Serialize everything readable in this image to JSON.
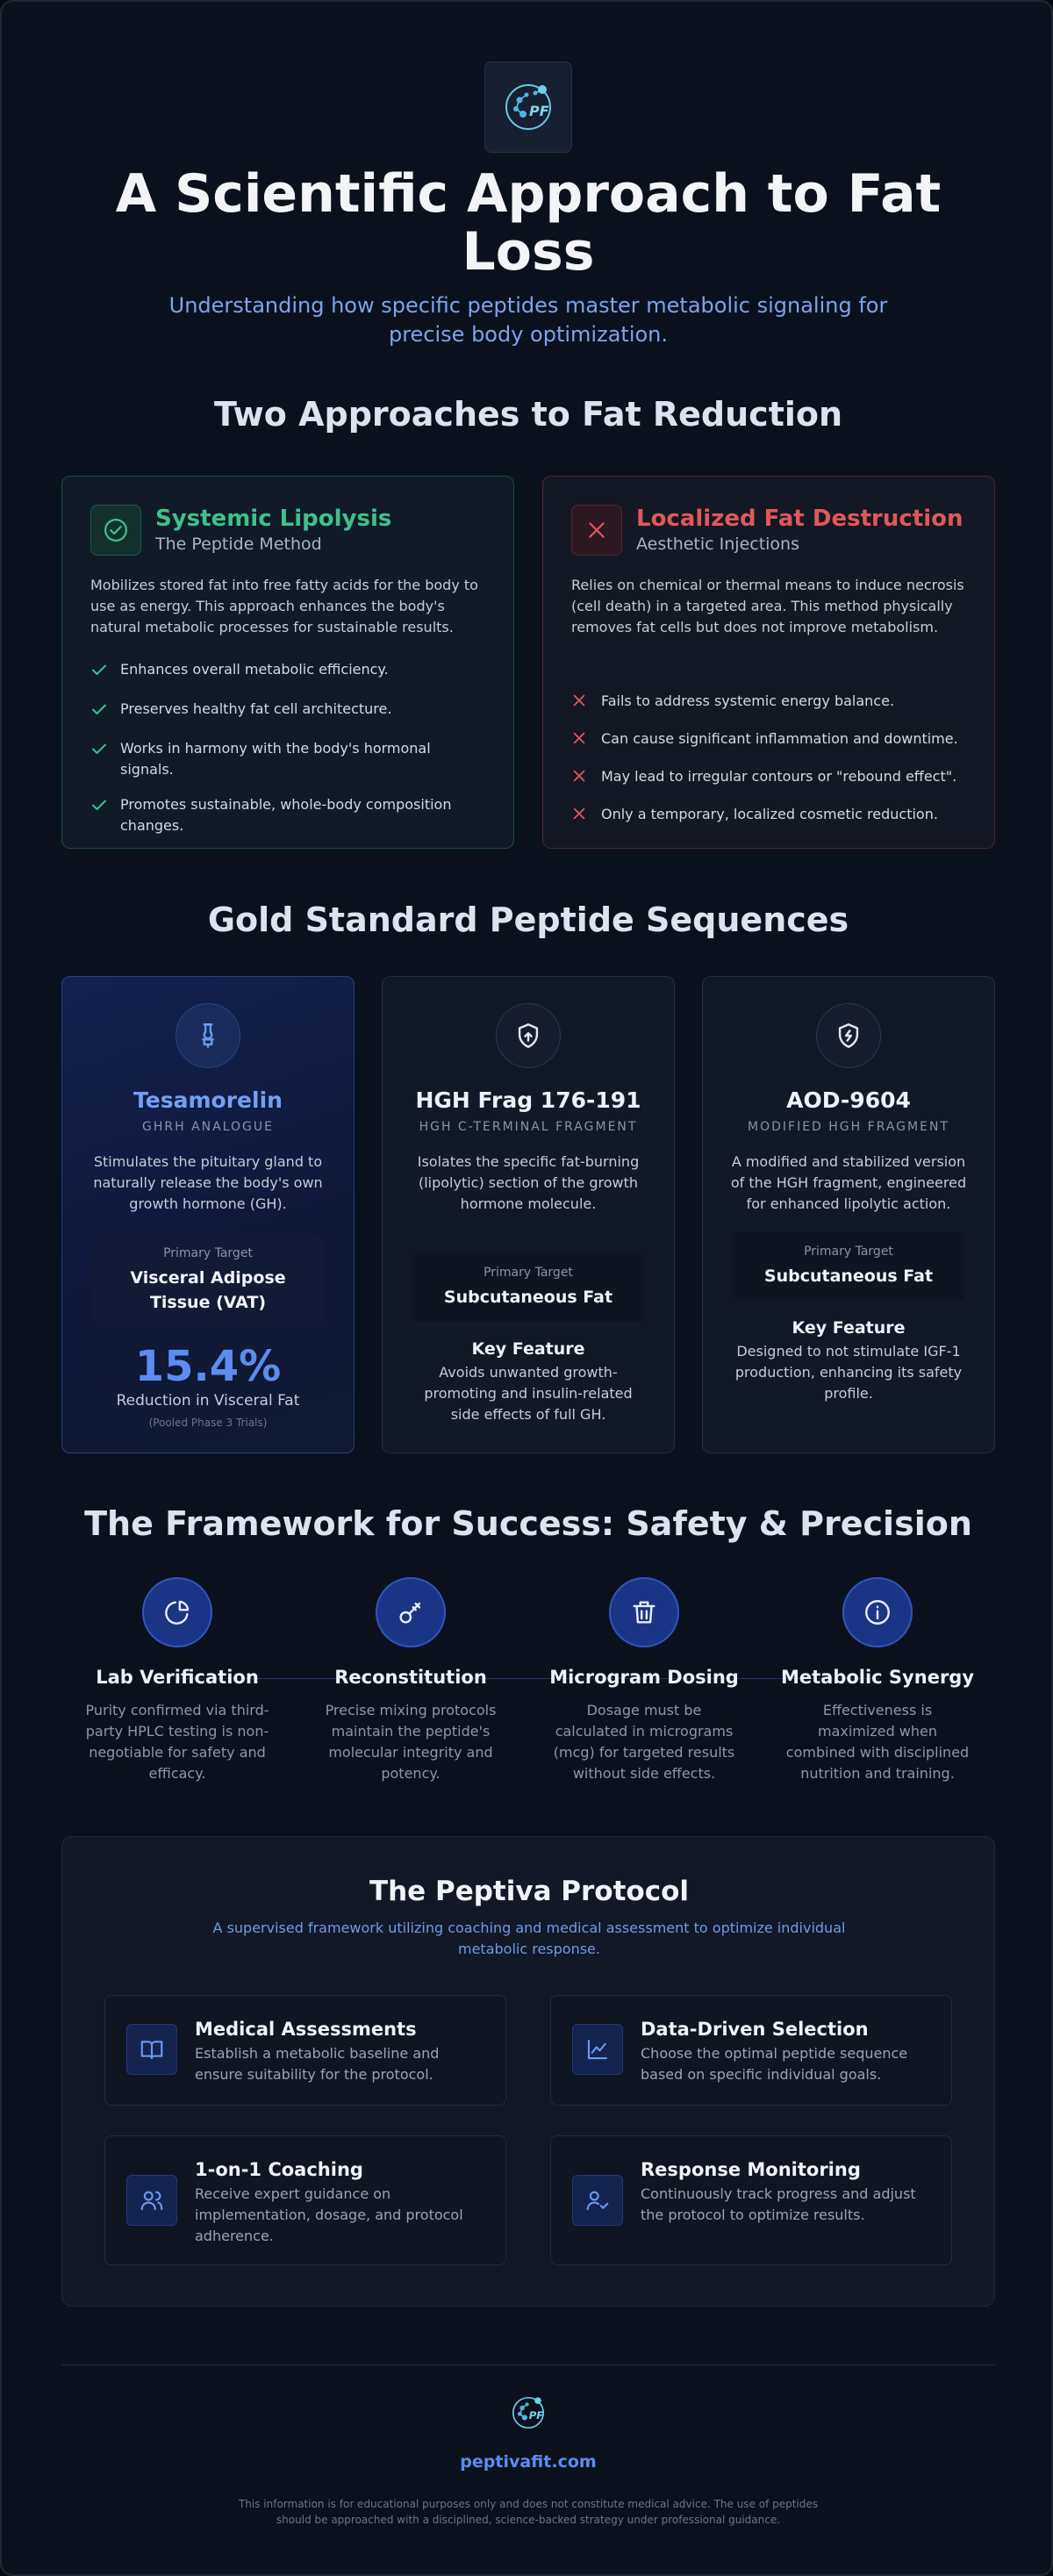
{
  "hero": {
    "logo_text": "PF",
    "title": "A Scientific Approach to Fat Loss",
    "subtitle": "Understanding how specific peptides master metabolic signaling for precise body optimization."
  },
  "approaches": {
    "heading": "Two Approaches to Fat Reduction",
    "systemic": {
      "title": "Systemic Lipolysis",
      "subtitle": "The Peptide Method",
      "description": "Mobilizes stored fat into free fatty acids for the body to use as energy. This approach enhances the body's natural metabolic processes for sustainable results.",
      "points": [
        "Enhances overall metabolic efficiency.",
        "Preserves healthy fat cell architecture.",
        "Works in harmony with the body's hormonal signals.",
        "Promotes sustainable, whole-body composition changes."
      ],
      "accent": "#3fc18a"
    },
    "localized": {
      "title": "Localized Fat Destruction",
      "subtitle": "Aesthetic Injections",
      "description": "Relies on chemical or thermal means to induce necrosis (cell death) in a targeted area. This method physically removes fat cells but does not improve metabolism.",
      "points": [
        "Fails to address systemic energy balance.",
        "Can cause significant inflammation and downtime.",
        "May lead to irregular contours or \"rebound effect\".",
        "Only a temporary, localized cosmetic reduction."
      ],
      "accent": "#e0585a"
    }
  },
  "peptides": {
    "heading": "Gold Standard Peptide Sequences",
    "target_label": "Primary Target",
    "feature_label": "Key Feature",
    "tesamorelin": {
      "icon": "pipette-icon",
      "name": "Tesamorelin",
      "kind": "GHRH ANALOGUE",
      "description": "Stimulates the pituitary gland to naturally release the body's own growth hormone (GH).",
      "target": "Visceral Adipose Tissue (VAT)",
      "stat": "15.4%",
      "stat_label": "Reduction in Visceral Fat",
      "stat_note": "(Pooled Phase 3 Trials)"
    },
    "hgh_frag": {
      "icon": "shield-icon",
      "name": "HGH Frag 176-191",
      "kind": "HGH C-TERMINAL FRAGMENT",
      "description": "Isolates the specific fat-burning (lipolytic) section of the growth hormone molecule.",
      "target": "Subcutaneous Fat",
      "feature": "Avoids unwanted growth-promoting and insulin-related side effects of full GH."
    },
    "aod": {
      "icon": "shield-bolt-icon",
      "name": "AOD-9604",
      "kind": "MODIFIED HGH FRAGMENT",
      "description": "A modified and stabilized version of the HGH fragment, engineered for enhanced lipolytic action.",
      "target": "Subcutaneous Fat",
      "feature": "Designed to not stimulate IGF-1 production, enhancing its safety profile."
    }
  },
  "framework": {
    "heading": "The Framework for Success: Safety & Precision",
    "steps": [
      {
        "icon": "pie-chart-icon",
        "title": "Lab Verification",
        "description": "Purity confirmed via third-party HPLC testing is non-negotiable for safety and efficacy."
      },
      {
        "icon": "key-icon",
        "title": "Reconstitution",
        "description": "Precise mixing protocols maintain the peptide's molecular integrity and potency."
      },
      {
        "icon": "trash-icon",
        "title": "Microgram Dosing",
        "description": "Dosage must be calculated in micrograms (mcg) for targeted results without side effects."
      },
      {
        "icon": "info-icon",
        "title": "Metabolic Synergy",
        "description": "Effectiveness is maximized when combined with disciplined nutrition and training."
      }
    ]
  },
  "protocol": {
    "title": "The Peptiva Protocol",
    "subtitle": "A supervised framework utilizing coaching and medical assessment to optimize individual metabolic response.",
    "cards": [
      {
        "icon": "book-icon",
        "title": "Medical Assessments",
        "description": "Establish a metabolic baseline and ensure suitability for the protocol."
      },
      {
        "icon": "line-chart-icon",
        "title": "Data-Driven Selection",
        "description": "Choose the optimal peptide sequence based on specific individual goals."
      },
      {
        "icon": "users-icon",
        "title": "1-on-1 Coaching",
        "description": "Receive expert guidance on implementation, dosage, and protocol adherence."
      },
      {
        "icon": "user-check-icon",
        "title": "Response Monitoring",
        "description": "Continuously track progress and adjust the protocol to optimize results."
      }
    ]
  },
  "footer": {
    "logo_text": "PF",
    "site": "peptivafit.com",
    "disclaimer": "This information is for educational purposes only and does not constitute medical advice. The use of peptides should be approached with a disciplined, science-backed strategy under professional guidance."
  }
}
